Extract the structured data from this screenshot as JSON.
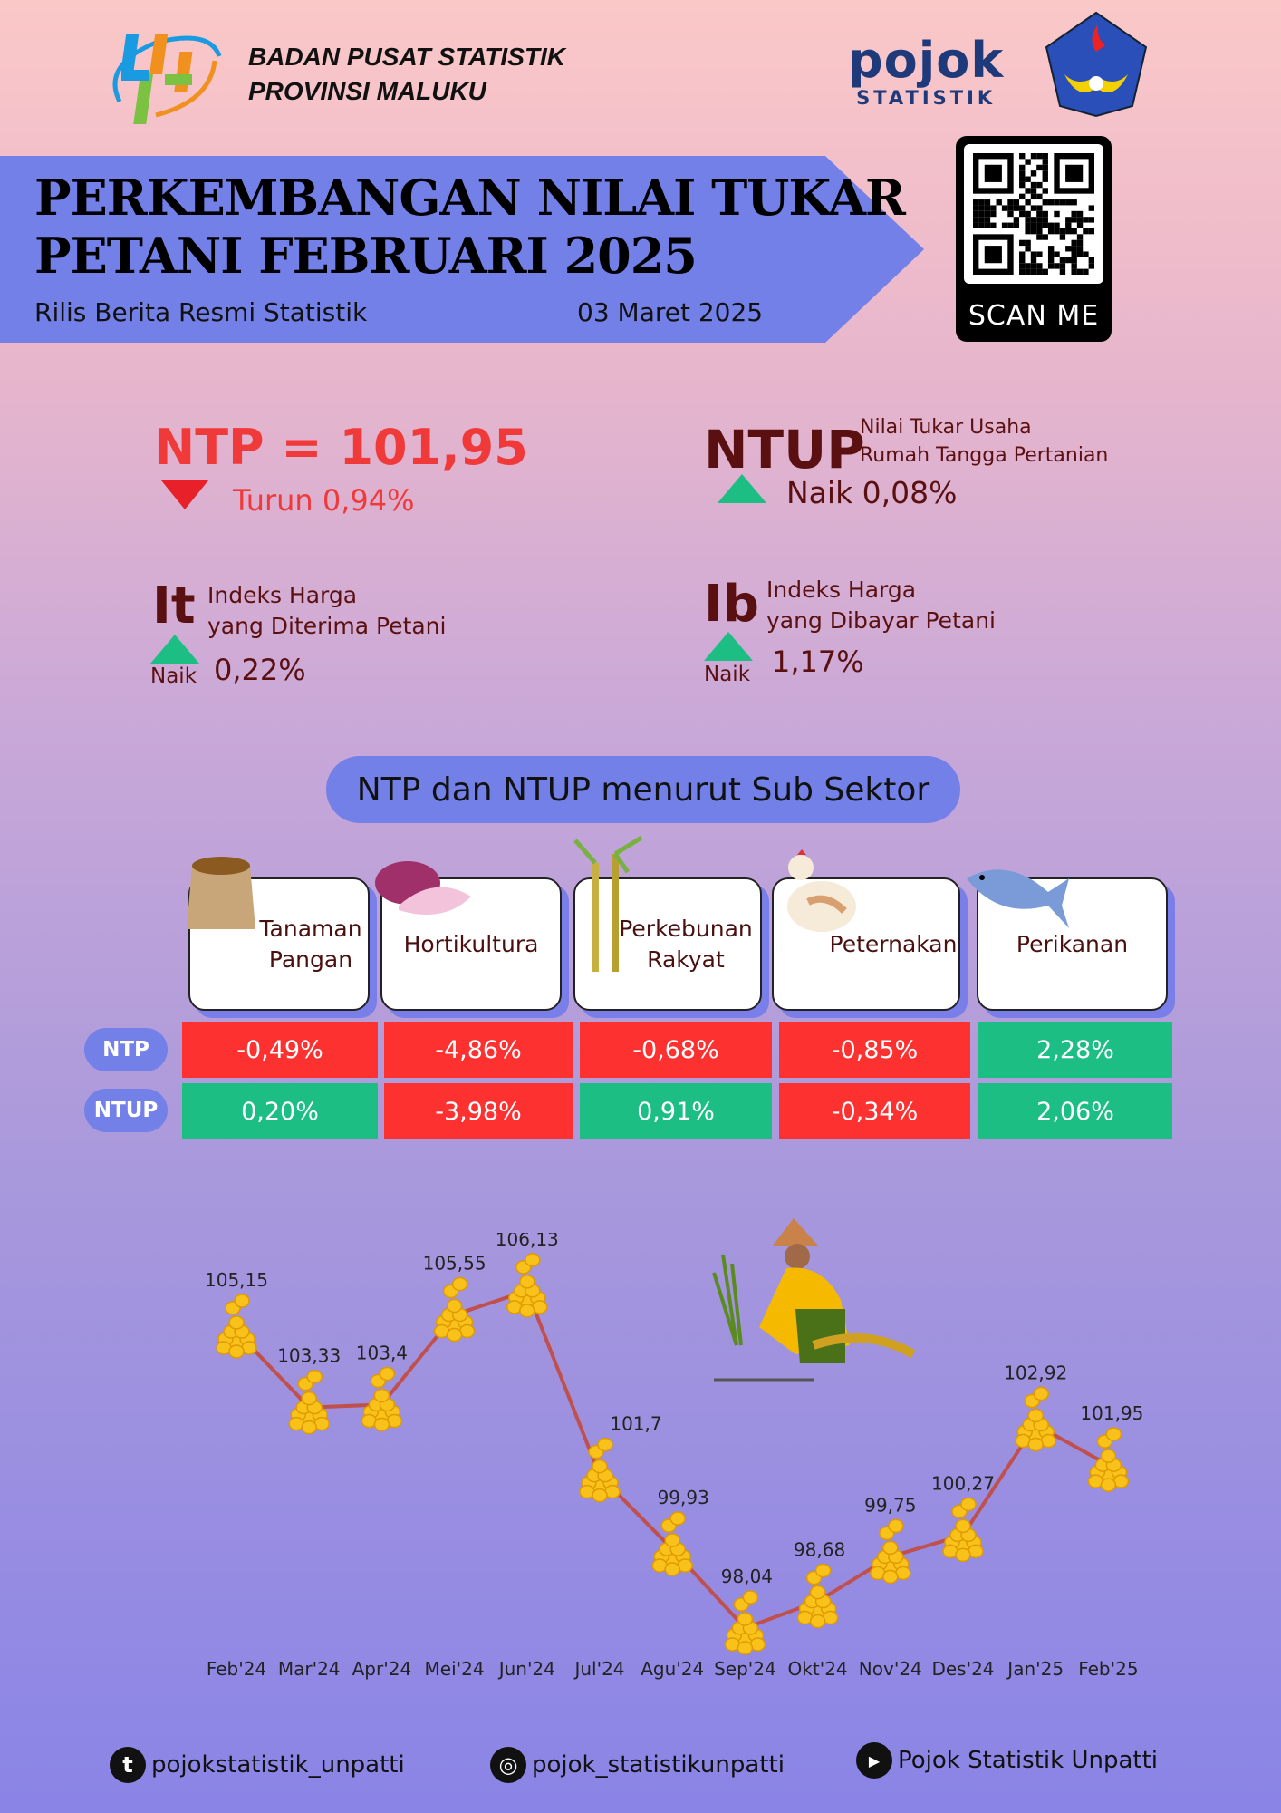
{
  "header": {
    "org_line1": "BADAN PUSAT STATISTIK",
    "org_line2": "PROVINSI MALUKU",
    "pojok_logo": "pojok",
    "pojok_sub": "STATISTIK",
    "univ_seal": "UNIVERSITAS PATTIMURA AMBON"
  },
  "banner": {
    "title_line1": "PERKEMBANGAN NILAI TUKAR",
    "title_line2": "PETANI FEBRUARI 2025",
    "subtitle": "Rilis Berita Resmi Statistik",
    "date": "03 Maret 2025"
  },
  "qr": {
    "label": "SCAN ME"
  },
  "ntp": {
    "label": "NTP = 101,95",
    "change": "Turun 0,94%"
  },
  "ntup": {
    "label": "NTUP",
    "desc_line1": "Nilai Tukar  Usaha",
    "desc_line2": "Rumah Tangga Pertanian",
    "change": "Naik 0,08%"
  },
  "it": {
    "label": "It",
    "desc_line1": "Indeks Harga",
    "desc_line2": "yang Diterima Petani",
    "dir": "Naik",
    "value": "0,22%"
  },
  "ib": {
    "label": "Ib",
    "desc_line1": "Indeks Harga",
    "desc_line2": "yang Dibayar Petani",
    "dir": "Naik",
    "value": "1,17%"
  },
  "subsector": {
    "title": "NTP dan NTUP menurut Sub Sektor",
    "row_labels": [
      "NTP",
      "NTUP"
    ],
    "sectors": [
      {
        "line1": "Tanaman",
        "line2": "Pangan",
        "ntp": "-0,49%",
        "ntup": "0,20%"
      },
      {
        "line1": "Hortikultura",
        "line2": "",
        "ntp": "-4,86%",
        "ntup": "-3,98%"
      },
      {
        "line1": "Perkebunan",
        "line2": "Rakyat",
        "ntp": "-0,68%",
        "ntup": "0,91%"
      },
      {
        "line1": "Peternakan",
        "line2": "",
        "ntp": "-0,85%",
        "ntup": "-0,34%"
      },
      {
        "line1": "Perikanan",
        "line2": "",
        "ntp": "2,28%",
        "ntup": "2,06%"
      }
    ],
    "colors": {
      "down": "#fe3131",
      "up": "#1dbe84"
    }
  },
  "chart_data": {
    "type": "line",
    "title": "",
    "xlabel": "",
    "ylabel": "",
    "categories": [
      "Feb'24",
      "Mar'24",
      "Apr'24",
      "Mei'24",
      "Jun'24",
      "Jul'24",
      "Agu'24",
      "Sep'24",
      "Okt'24",
      "Nov'24",
      "Des'24",
      "Jan'25",
      "Feb'25"
    ],
    "values": [
      105.15,
      103.33,
      103.4,
      105.55,
      106.13,
      101.7,
      99.93,
      98.04,
      98.68,
      99.75,
      100.27,
      102.92,
      101.95
    ],
    "labels": [
      "105,15",
      "103,33",
      "103,4",
      "105,55",
      "106,13",
      "101,7",
      "99,93",
      "98,04",
      "98,68",
      "99,75",
      "100,27",
      "102,92",
      "101,95"
    ],
    "line_color": "#c0504d",
    "grid": false
  },
  "footer": {
    "tiktok": "pojokstatistik_unpatti",
    "instagram": "pojok_statistikunpatti",
    "youtube": "Pojok Statistik Unpatti"
  }
}
